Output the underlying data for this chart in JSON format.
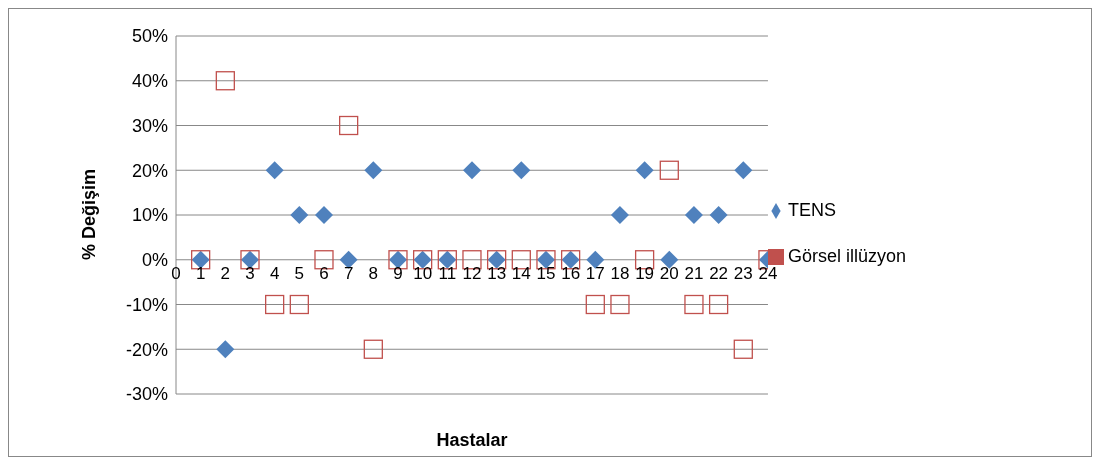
{
  "chart_data": {
    "type": "scatter",
    "xlabel": "Hastalar",
    "ylabel": "% Değişim",
    "x": [
      1,
      2,
      3,
      4,
      5,
      6,
      7,
      8,
      9,
      10,
      11,
      12,
      13,
      14,
      15,
      16,
      17,
      18,
      19,
      20,
      21,
      22,
      23,
      24
    ],
    "series": [
      {
        "name": "TENS",
        "color": "#4f81bd",
        "marker": "diamond",
        "values": [
          0,
          -20,
          0,
          20,
          10,
          10,
          0,
          20,
          0,
          0,
          0,
          20,
          0,
          20,
          0,
          0,
          0,
          10,
          20,
          0,
          10,
          10,
          20,
          0
        ]
      },
      {
        "name": "Görsel illüzyon",
        "color": "#c0504d",
        "marker": "square",
        "values": [
          0,
          40,
          0,
          -10,
          -10,
          0,
          30,
          -20,
          0,
          0,
          0,
          0,
          0,
          0,
          0,
          0,
          -10,
          -10,
          0,
          20,
          -10,
          -10,
          -20,
          0
        ]
      }
    ],
    "xlim": [
      0,
      24
    ],
    "xticks": [
      0,
      1,
      2,
      3,
      4,
      5,
      6,
      7,
      8,
      9,
      10,
      11,
      12,
      13,
      14,
      15,
      16,
      17,
      18,
      19,
      20,
      21,
      22,
      23,
      24
    ],
    "ylim": [
      -30,
      50
    ],
    "yticks": [
      {
        "value": -30,
        "label": "-30%"
      },
      {
        "value": -20,
        "label": "-20%"
      },
      {
        "value": -10,
        "label": "-10%"
      },
      {
        "value": 0,
        "label": "0%"
      },
      {
        "value": 10,
        "label": "10%"
      },
      {
        "value": 20,
        "label": "20%"
      },
      {
        "value": 30,
        "label": "30%"
      },
      {
        "value": 40,
        "label": "40%"
      },
      {
        "value": 50,
        "label": "50%"
      }
    ],
    "grid": "y",
    "legend": "right"
  }
}
